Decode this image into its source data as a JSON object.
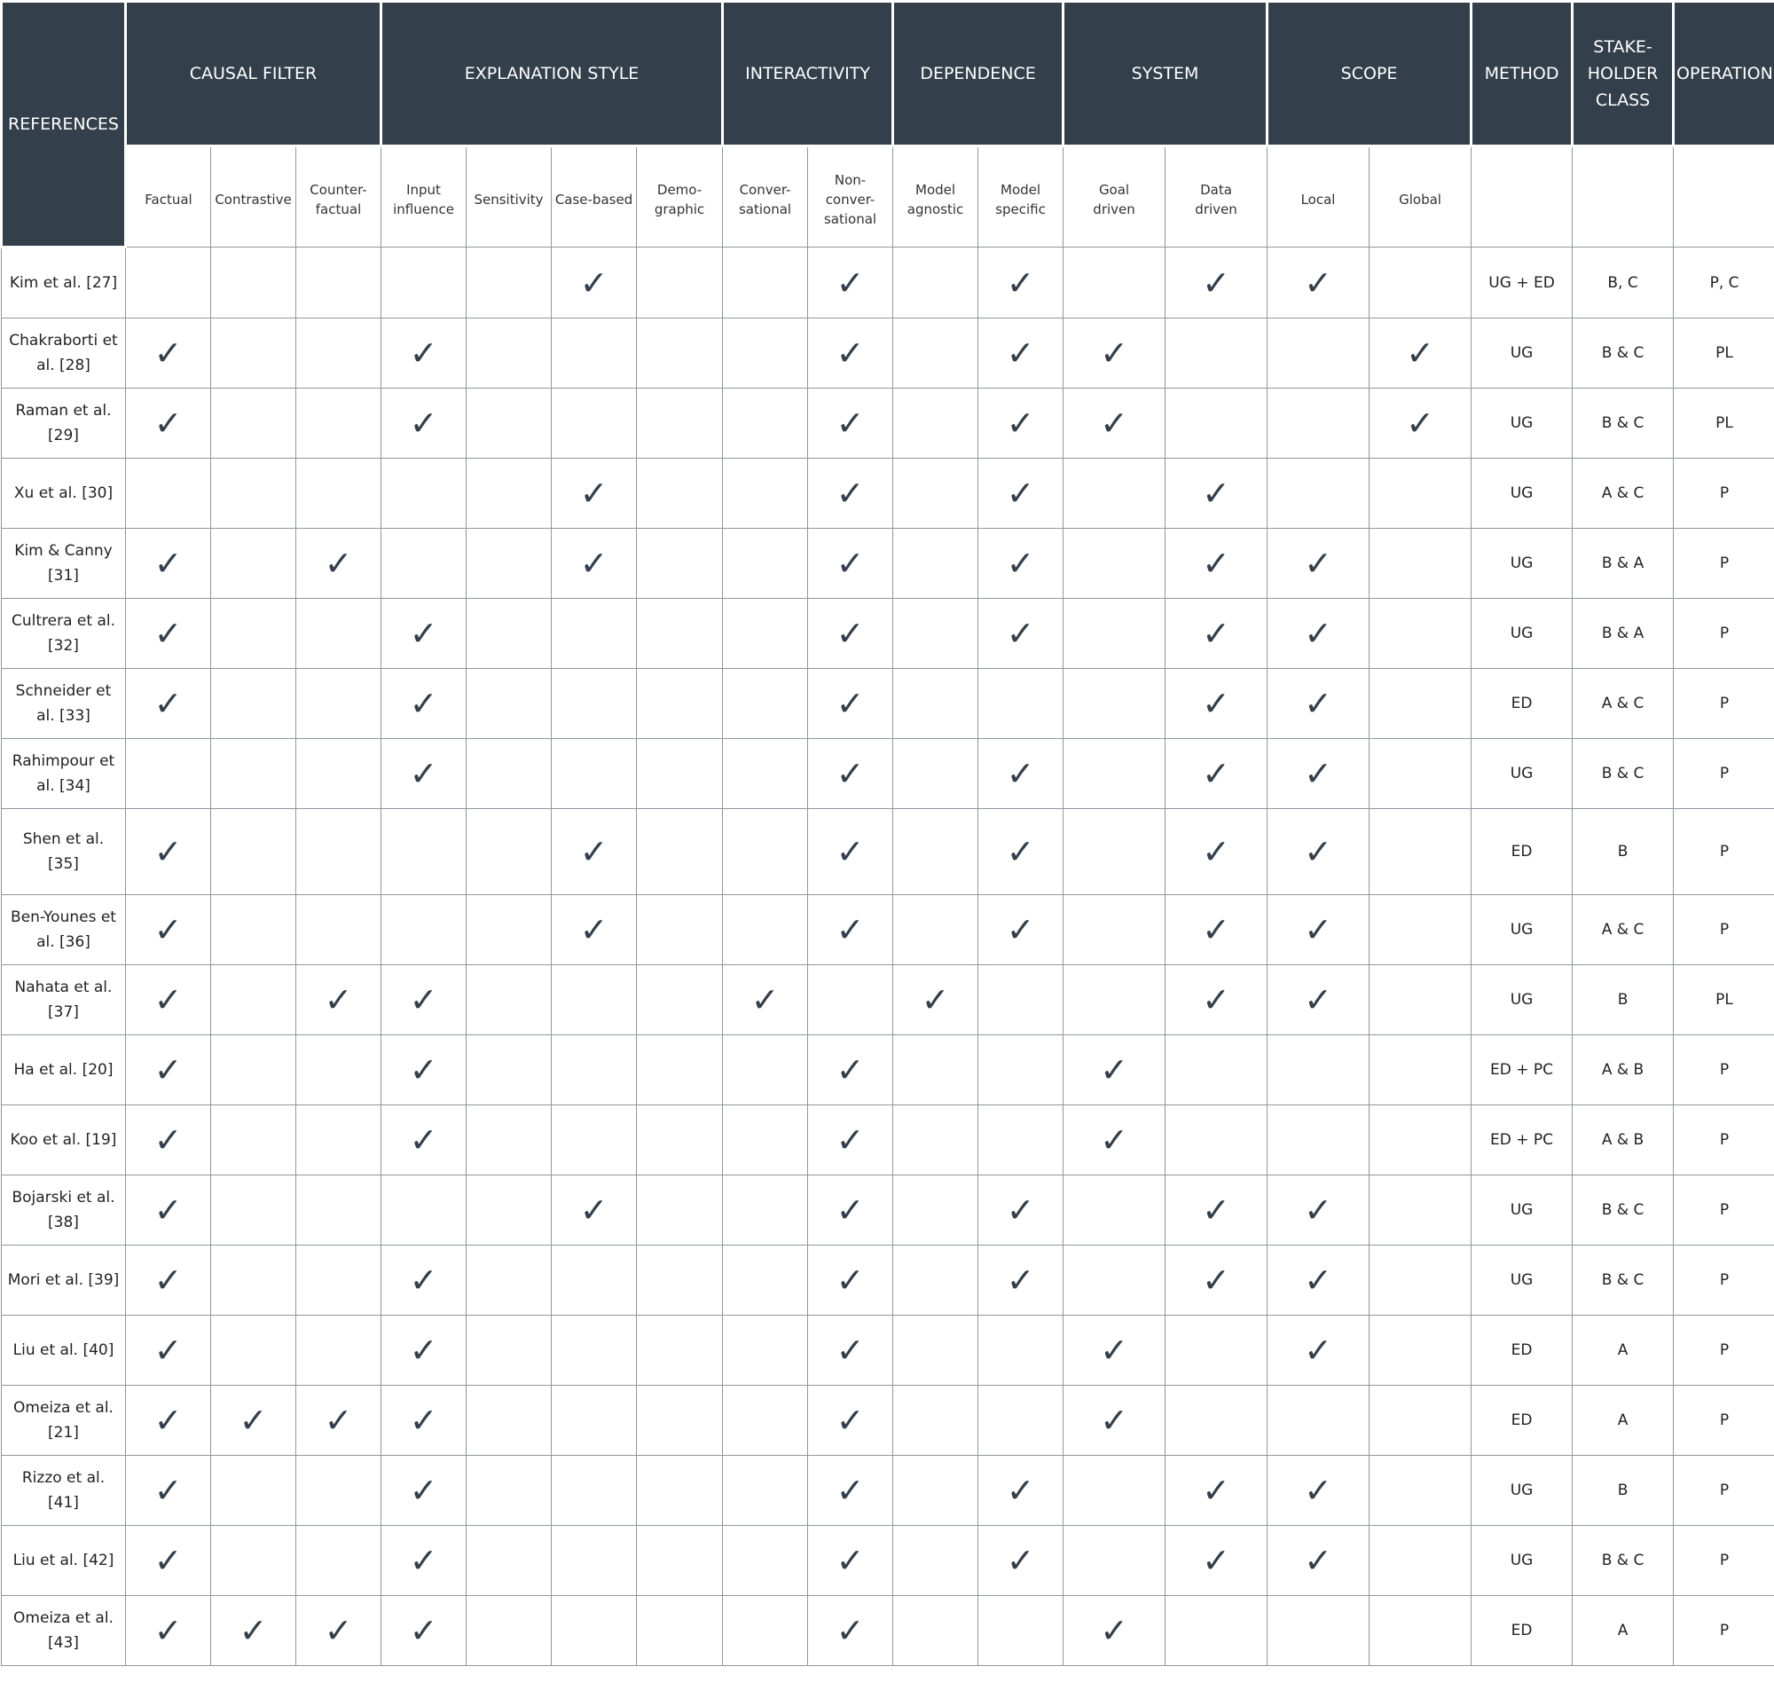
{
  "header": {
    "reference_label": "REFERENCES",
    "groups": [
      {
        "label": "CAUSAL FILTER",
        "columns": [
          "Factual",
          "Contrastive",
          "Counter-\nfactual"
        ]
      },
      {
        "label": "EXPLANATION STYLE",
        "columns": [
          "Input\ninfluence",
          "Sensitivity",
          "Case-based",
          "Demo-\ngraphic"
        ]
      },
      {
        "label": "INTERACTIVITY",
        "columns": [
          "Conver-\nsational",
          "Non-\nconver-\nsational"
        ]
      },
      {
        "label": "DEPENDENCE",
        "columns": [
          "Model\nagnostic",
          "Model\nspecific"
        ]
      },
      {
        "label": "SYSTEM",
        "columns": [
          "Goal\ndriven",
          "Data\ndriven"
        ]
      },
      {
        "label": "SCOPE",
        "columns": [
          "Local",
          "Global"
        ]
      },
      {
        "label": "METHOD",
        "columns": [
          null
        ]
      },
      {
        "label": "STAKE-\nHOLDER\nCLASS",
        "columns": [
          null
        ]
      },
      {
        "label": "OPERATION",
        "columns": [
          null
        ]
      }
    ]
  },
  "table": {
    "rows": [
      {
        "reference": "Kim et al. [27]",
        "cells": [
          null,
          null,
          null,
          null,
          null,
          "✓",
          null,
          null,
          "✓",
          null,
          "✓",
          null,
          "✓",
          "✓",
          null,
          "UG + ED",
          "B, C",
          "P, C"
        ]
      },
      {
        "reference": "Chakraborti et al. [28]",
        "cells": [
          "✓",
          null,
          null,
          "✓",
          null,
          null,
          null,
          null,
          "✓",
          null,
          "✓",
          "✓",
          null,
          null,
          "✓",
          "UG",
          "B & C",
          "PL"
        ]
      },
      {
        "reference": "Raman et al. [29]",
        "cells": [
          "✓",
          null,
          null,
          "✓",
          null,
          null,
          null,
          null,
          "✓",
          null,
          "✓",
          "✓",
          null,
          null,
          "✓",
          "UG",
          "B & C",
          "PL"
        ]
      },
      {
        "reference": "Xu et al. [30]",
        "cells": [
          null,
          null,
          null,
          null,
          null,
          "✓",
          null,
          null,
          "✓",
          null,
          "✓",
          null,
          "✓",
          null,
          null,
          "UG",
          "A & C",
          "P"
        ]
      },
      {
        "reference": "Kim & Canny [31]",
        "cells": [
          "✓",
          null,
          "✓",
          null,
          null,
          "✓",
          null,
          null,
          "✓",
          null,
          "✓",
          null,
          "✓",
          "✓",
          null,
          "UG",
          "B & A",
          "P"
        ]
      },
      {
        "reference": "Cultrera et al. [32]",
        "cells": [
          "✓",
          null,
          null,
          "✓",
          null,
          null,
          null,
          null,
          "✓",
          null,
          "✓",
          null,
          "✓",
          "✓",
          null,
          "UG",
          "B & A",
          "P"
        ]
      },
      {
        "reference": "Schneider et al. [33]",
        "cells": [
          "✓",
          null,
          null,
          "✓",
          null,
          null,
          null,
          null,
          "✓",
          null,
          null,
          null,
          "✓",
          "✓",
          null,
          "ED",
          "A & C",
          "P"
        ]
      },
      {
        "reference": "Rahimpour et al. [34]",
        "cells": [
          null,
          null,
          null,
          "✓",
          null,
          null,
          null,
          null,
          "✓",
          null,
          "✓",
          null,
          "✓",
          "✓",
          null,
          "UG",
          "B & C",
          "P"
        ]
      },
      {
        "reference": "Shen et al. [35]",
        "cells": [
          "✓",
          null,
          null,
          null,
          null,
          "✓",
          null,
          null,
          "✓",
          null,
          "✓",
          null,
          "✓",
          "✓",
          null,
          "ED",
          "B",
          "P"
        ]
      },
      {
        "reference": "Ben-Younes et al. [36]",
        "cells": [
          "✓",
          null,
          null,
          null,
          null,
          "✓",
          null,
          null,
          "✓",
          null,
          "✓",
          null,
          "✓",
          "✓",
          null,
          "UG",
          "A & C",
          "P"
        ]
      },
      {
        "reference": "Nahata et al. [37]",
        "cells": [
          "✓",
          null,
          "✓",
          "✓",
          null,
          null,
          null,
          "✓",
          null,
          "✓",
          null,
          null,
          "✓",
          "✓",
          null,
          "UG",
          "B",
          "PL"
        ]
      },
      {
        "reference": "Ha et al. [20]",
        "cells": [
          "✓",
          null,
          null,
          "✓",
          null,
          null,
          null,
          null,
          "✓",
          null,
          null,
          "✓",
          null,
          null,
          null,
          "ED + PC",
          "A & B",
          "P"
        ]
      },
      {
        "reference": "Koo et al. [19]",
        "cells": [
          "✓",
          null,
          null,
          "✓",
          null,
          null,
          null,
          null,
          "✓",
          null,
          null,
          "✓",
          null,
          null,
          null,
          "ED + PC",
          "A & B",
          "P"
        ]
      },
      {
        "reference": "Bojarski et al. [38]",
        "cells": [
          "✓",
          null,
          null,
          null,
          null,
          "✓",
          null,
          null,
          "✓",
          null,
          "✓",
          null,
          "✓",
          "✓",
          null,
          "UG",
          "B & C",
          "P"
        ]
      },
      {
        "reference": "Mori et al. [39]",
        "cells": [
          "✓",
          null,
          null,
          "✓",
          null,
          null,
          null,
          null,
          "✓",
          null,
          "✓",
          null,
          "✓",
          "✓",
          null,
          "UG",
          "B & C",
          "P"
        ]
      },
      {
        "reference": "Liu et al. [40]",
        "cells": [
          "✓",
          null,
          null,
          "✓",
          null,
          null,
          null,
          null,
          "✓",
          null,
          null,
          "✓",
          null,
          "✓",
          null,
          "ED",
          "A",
          "P"
        ]
      },
      {
        "reference": "Omeiza et al. [21]",
        "cells": [
          "✓",
          "✓",
          "✓",
          "✓",
          null,
          null,
          null,
          null,
          "✓",
          null,
          null,
          "✓",
          null,
          null,
          null,
          "ED",
          "A",
          "P"
        ]
      },
      {
        "reference": "Rizzo et al. [41]",
        "cells": [
          "✓",
          null,
          null,
          "✓",
          null,
          null,
          null,
          null,
          "✓",
          null,
          "✓",
          null,
          "✓",
          "✓",
          null,
          "UG",
          "B",
          "P"
        ]
      },
      {
        "reference": "Liu et al. [42]",
        "cells": [
          "✓",
          null,
          null,
          "✓",
          null,
          null,
          null,
          null,
          "✓",
          null,
          "✓",
          null,
          "✓",
          "✓",
          null,
          "UG",
          "B & C",
          "P"
        ]
      },
      {
        "reference": "Omeiza et al. [43]",
        "cells": [
          "✓",
          "✓",
          "✓",
          "✓",
          null,
          null,
          null,
          null,
          "✓",
          null,
          null,
          "✓",
          null,
          null,
          null,
          "ED",
          "A",
          "P"
        ]
      }
    ]
  }
}
